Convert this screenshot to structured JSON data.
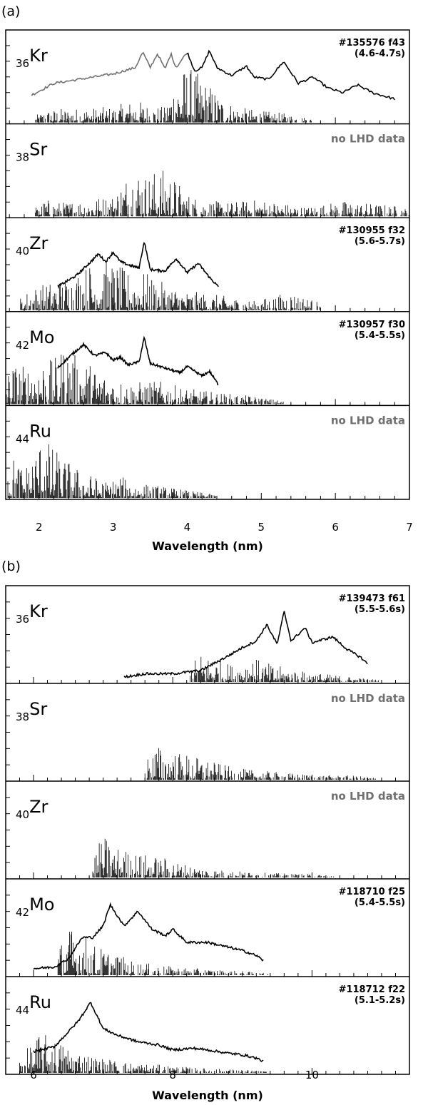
{
  "chart_data": [
    {
      "id": "a",
      "type": "line",
      "panel_label": "(a)",
      "xlabel": "Wavelength (nm)",
      "xlim": [
        1.55,
        7.0
      ],
      "xticks": [
        2,
        3,
        4,
        5,
        6,
        7
      ],
      "tick_labels": [
        "2",
        "3",
        "4",
        "5",
        "6",
        "7"
      ],
      "rows": [
        {
          "element": "Kr",
          "z": "36",
          "shot": "#135576 f43",
          "time": "(4.6-4.7s)",
          "note": "",
          "measured": [
            [
              1.9,
              0.35
            ],
            [
              2.2,
              0.5
            ],
            [
              2.6,
              0.56
            ],
            [
              3.0,
              0.62
            ],
            [
              3.3,
              0.7
            ],
            [
              3.4,
              0.9
            ],
            [
              3.5,
              0.7
            ],
            [
              3.6,
              0.88
            ],
            [
              3.7,
              0.68
            ],
            [
              3.78,
              0.88
            ],
            [
              3.85,
              0.7
            ],
            [
              4.0,
              0.9
            ],
            [
              4.1,
              0.66
            ],
            [
              4.2,
              0.7
            ],
            [
              4.3,
              0.92
            ],
            [
              4.4,
              0.7
            ],
            [
              4.6,
              0.6
            ],
            [
              4.8,
              0.72
            ],
            [
              4.9,
              0.58
            ],
            [
              5.1,
              0.55
            ],
            [
              5.3,
              0.78
            ],
            [
              5.5,
              0.5
            ],
            [
              5.7,
              0.58
            ],
            [
              5.9,
              0.44
            ],
            [
              6.1,
              0.38
            ],
            [
              6.3,
              0.48
            ],
            [
              6.5,
              0.38
            ],
            [
              6.8,
              0.3
            ]
          ],
          "measured_gray_until": 4.0,
          "calc": [
            [
              2.1,
              0.16
            ],
            [
              2.3,
              0.18
            ],
            [
              3.0,
              0.2
            ],
            [
              3.3,
              0.3
            ],
            [
              3.5,
              0.22
            ],
            [
              3.7,
              0.2
            ],
            [
              3.85,
              0.62
            ],
            [
              4.0,
              0.75
            ],
            [
              4.3,
              0.5
            ],
            [
              4.5,
              0.3
            ],
            [
              4.7,
              0.2
            ],
            [
              5.0,
              0.15
            ],
            [
              5.3,
              0.12
            ]
          ]
        },
        {
          "element": "Sr",
          "z": "38",
          "shot": "",
          "time": "",
          "note": "no LHD data",
          "measured": [],
          "measured_gray_until": 0,
          "calc": [
            [
              2.1,
              0.22
            ],
            [
              2.3,
              0.18
            ],
            [
              3.0,
              0.28
            ],
            [
              3.28,
              0.7
            ],
            [
              3.45,
              0.55
            ],
            [
              3.6,
              0.62
            ],
            [
              3.75,
              0.6
            ],
            [
              4.0,
              0.3
            ],
            [
              4.2,
              0.22
            ],
            [
              4.5,
              0.18
            ],
            [
              5.0,
              0.22
            ],
            [
              5.6,
              0.12
            ],
            [
              6.1,
              0.2
            ],
            [
              6.8,
              0.14
            ]
          ]
        },
        {
          "element": "Zr",
          "z": "40",
          "shot": "#130955 f32",
          "time": "(5.6-5.7s)",
          "note": "",
          "measured": [
            [
              2.25,
              0.3
            ],
            [
              2.5,
              0.44
            ],
            [
              2.7,
              0.62
            ],
            [
              2.8,
              0.72
            ],
            [
              2.9,
              0.62
            ],
            [
              3.0,
              0.74
            ],
            [
              3.1,
              0.62
            ],
            [
              3.2,
              0.58
            ],
            [
              3.35,
              0.54
            ],
            [
              3.42,
              0.88
            ],
            [
              3.5,
              0.52
            ],
            [
              3.7,
              0.5
            ],
            [
              3.85,
              0.66
            ],
            [
              4.0,
              0.48
            ],
            [
              4.15,
              0.6
            ],
            [
              4.3,
              0.42
            ],
            [
              4.42,
              0.3
            ]
          ],
          "measured_gray_until": 0,
          "calc": [
            [
              1.9,
              0.3
            ],
            [
              2.2,
              0.38
            ],
            [
              2.6,
              0.55
            ],
            [
              2.78,
              0.7
            ],
            [
              3.0,
              0.62
            ],
            [
              3.2,
              0.5
            ],
            [
              3.42,
              0.5
            ],
            [
              3.6,
              0.38
            ],
            [
              4.0,
              0.25
            ],
            [
              4.4,
              0.2
            ],
            [
              4.9,
              0.12
            ],
            [
              5.4,
              0.24
            ]
          ]
        },
        {
          "element": "Mo",
          "z": "42",
          "shot": "#130957 f30",
          "time": "(5.4-5.5s)",
          "note": "",
          "measured": [
            [
              2.25,
              0.46
            ],
            [
              2.45,
              0.64
            ],
            [
              2.6,
              0.76
            ],
            [
              2.75,
              0.62
            ],
            [
              2.9,
              0.66
            ],
            [
              3.0,
              0.56
            ],
            [
              3.1,
              0.6
            ],
            [
              3.2,
              0.5
            ],
            [
              3.35,
              0.54
            ],
            [
              3.42,
              0.85
            ],
            [
              3.5,
              0.52
            ],
            [
              3.7,
              0.46
            ],
            [
              3.9,
              0.4
            ],
            [
              4.0,
              0.48
            ],
            [
              4.2,
              0.36
            ],
            [
              4.3,
              0.42
            ],
            [
              4.42,
              0.25
            ]
          ],
          "measured_gray_until": 0,
          "calc": [
            [
              1.65,
              0.55
            ],
            [
              1.8,
              0.5
            ],
            [
              2.05,
              0.62
            ],
            [
              2.2,
              0.56
            ],
            [
              2.35,
              0.8
            ],
            [
              2.5,
              0.62
            ],
            [
              2.62,
              0.58
            ],
            [
              2.8,
              0.45
            ],
            [
              3.0,
              0.35
            ],
            [
              3.2,
              0.28
            ],
            [
              3.6,
              0.3
            ],
            [
              4.0,
              0.2
            ],
            [
              4.5,
              0.14
            ],
            [
              4.9,
              0.1
            ]
          ]
        },
        {
          "element": "Ru",
          "z": "44",
          "shot": "",
          "time": "",
          "note": "no LHD data",
          "measured": [],
          "measured_gray_until": 0,
          "calc": [
            [
              1.6,
              0.6
            ],
            [
              1.8,
              0.4
            ],
            [
              2.05,
              0.82
            ],
            [
              2.15,
              0.7
            ],
            [
              2.3,
              0.55
            ],
            [
              2.5,
              0.4
            ],
            [
              2.7,
              0.3
            ],
            [
              2.9,
              0.22
            ],
            [
              3.1,
              0.28
            ],
            [
              3.3,
              0.2
            ],
            [
              3.6,
              0.16
            ],
            [
              4.0,
              0.1
            ]
          ]
        }
      ]
    },
    {
      "id": "b",
      "type": "line",
      "panel_label": "(b)",
      "xlabel": "Wavelength (nm)",
      "xlim": [
        5.6,
        11.4
      ],
      "xticks": [
        6,
        8,
        10
      ],
      "tick_labels": [
        "6",
        "8",
        "10"
      ],
      "rows": [
        {
          "element": "Kr",
          "z": "36",
          "shot": "#139473 f61",
          "time": "(5.5-5.6s)",
          "note": "",
          "measured": [
            [
              7.3,
              0.06
            ],
            [
              7.6,
              0.1
            ],
            [
              8.0,
              0.1
            ],
            [
              8.4,
              0.14
            ],
            [
              8.8,
              0.32
            ],
            [
              9.0,
              0.42
            ],
            [
              9.2,
              0.5
            ],
            [
              9.35,
              0.7
            ],
            [
              9.5,
              0.46
            ],
            [
              9.6,
              0.86
            ],
            [
              9.7,
              0.5
            ],
            [
              9.9,
              0.66
            ],
            [
              10.0,
              0.48
            ],
            [
              10.3,
              0.55
            ],
            [
              10.5,
              0.4
            ],
            [
              10.7,
              0.3
            ],
            [
              10.8,
              0.22
            ]
          ],
          "measured_gray_until": 0,
          "calc": [
            [
              8.4,
              0.36
            ],
            [
              8.6,
              0.3
            ],
            [
              8.9,
              0.2
            ],
            [
              9.1,
              0.32
            ],
            [
              9.4,
              0.22
            ],
            [
              9.8,
              0.14
            ],
            [
              10.2,
              0.1
            ],
            [
              10.6,
              0.06
            ]
          ]
        },
        {
          "element": "Sr",
          "z": "38",
          "shot": "",
          "time": "",
          "note": "no LHD data",
          "measured": [],
          "measured_gray_until": 0,
          "calc": [
            [
              7.75,
              0.44
            ],
            [
              7.95,
              0.36
            ],
            [
              8.2,
              0.32
            ],
            [
              8.5,
              0.24
            ],
            [
              8.9,
              0.14
            ],
            [
              9.4,
              0.1
            ],
            [
              10.0,
              0.06
            ],
            [
              10.6,
              0.05
            ]
          ]
        },
        {
          "element": "Zr",
          "z": "40",
          "shot": "",
          "time": "",
          "note": "no LHD data",
          "measured": [],
          "measured_gray_until": 0,
          "calc": [
            [
              7.0,
              0.52
            ],
            [
              7.2,
              0.38
            ],
            [
              7.5,
              0.3
            ],
            [
              7.9,
              0.24
            ],
            [
              8.2,
              0.16
            ],
            [
              8.6,
              0.1
            ],
            [
              9.2,
              0.06
            ],
            [
              10.0,
              0.04
            ]
          ]
        },
        {
          "element": "Mo",
          "z": "42",
          "shot": "#118710 f25",
          "time": "(5.4-5.5s)",
          "note": "",
          "measured": [
            [
              6.0,
              0.08
            ],
            [
              6.3,
              0.1
            ],
            [
              6.5,
              0.2
            ],
            [
              6.7,
              0.46
            ],
            [
              6.85,
              0.46
            ],
            [
              7.0,
              0.6
            ],
            [
              7.1,
              0.86
            ],
            [
              7.3,
              0.6
            ],
            [
              7.5,
              0.78
            ],
            [
              7.7,
              0.56
            ],
            [
              7.9,
              0.48
            ],
            [
              8.0,
              0.56
            ],
            [
              8.2,
              0.4
            ],
            [
              8.5,
              0.4
            ],
            [
              8.8,
              0.34
            ],
            [
              9.0,
              0.3
            ],
            [
              9.2,
              0.24
            ],
            [
              9.3,
              0.18
            ]
          ],
          "measured_gray_until": 0,
          "calc": [
            [
              6.5,
              0.6
            ],
            [
              6.7,
              0.54
            ],
            [
              6.9,
              0.36
            ],
            [
              7.1,
              0.3
            ],
            [
              7.4,
              0.18
            ],
            [
              7.8,
              0.12
            ],
            [
              8.4,
              0.08
            ],
            [
              9.0,
              0.05
            ]
          ]
        },
        {
          "element": "Ru",
          "z": "44",
          "shot": "#118712 f22",
          "time": "(5.1-5.2s)",
          "note": "",
          "measured": [
            [
              6.0,
              0.26
            ],
            [
              6.3,
              0.32
            ],
            [
              6.5,
              0.5
            ],
            [
              6.65,
              0.64
            ],
            [
              6.82,
              0.86
            ],
            [
              7.0,
              0.54
            ],
            [
              7.2,
              0.46
            ],
            [
              7.5,
              0.38
            ],
            [
              7.8,
              0.34
            ],
            [
              8.0,
              0.28
            ],
            [
              8.3,
              0.3
            ],
            [
              8.5,
              0.28
            ],
            [
              8.8,
              0.24
            ],
            [
              9.0,
              0.22
            ],
            [
              9.2,
              0.18
            ],
            [
              9.3,
              0.14
            ]
          ],
          "measured_gray_until": 0,
          "calc": [
            [
              5.95,
              0.34
            ],
            [
              6.1,
              0.5
            ],
            [
              6.3,
              0.42
            ],
            [
              6.6,
              0.3
            ],
            [
              6.9,
              0.2
            ],
            [
              7.3,
              0.14
            ],
            [
              7.8,
              0.1
            ],
            [
              8.4,
              0.06
            ],
            [
              9.0,
              0.04
            ]
          ]
        }
      ]
    }
  ]
}
